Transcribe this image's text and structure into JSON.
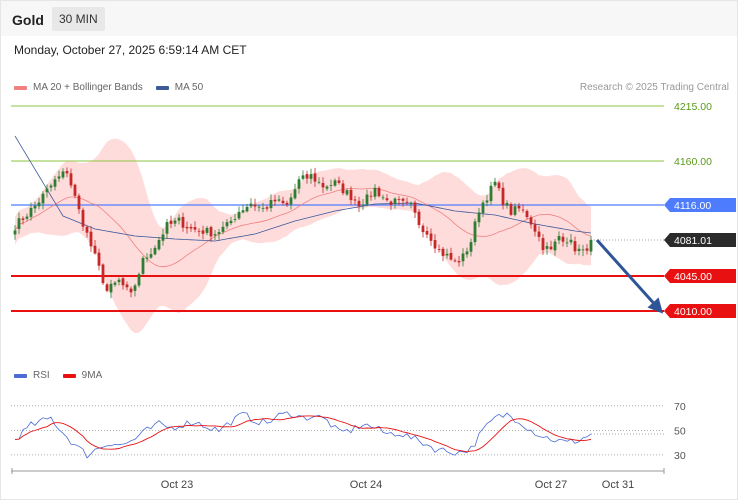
{
  "header": {
    "symbol": "Gold",
    "timeframe": "30 MIN",
    "timestamp": "Monday, October 27, 2025 6:59:14 AM CET",
    "credit": "Research © 2025 Trading Central"
  },
  "legend": {
    "ma20_bb": "MA 20 + Bollinger Bands",
    "ma50": "MA 50",
    "rsi": "RSI",
    "rsi_ma": "9MA"
  },
  "colors": {
    "candle_up": "#2e7d32",
    "candle_down": "#c62828",
    "bollinger_fill": "#ffd6d6",
    "ma20": "#f08080",
    "ma50": "#3d5a99",
    "pivot": "#4d7cff",
    "support": "#e81010",
    "resistance": "#8cc63f",
    "current": "#333333",
    "arrow": "#2f5597",
    "rsi": "#4a6cd4",
    "rsi_ma": "#e81010"
  },
  "chart_data": [
    {
      "type": "candlestick",
      "y_range": [
        3985,
        4225
      ],
      "x_ticks": [
        "Oct 23",
        "Oct 24",
        "Oct 27",
        "Oct 31"
      ],
      "levels": [
        {
          "value": 4215.0,
          "label": "4215.00",
          "kind": "resistance"
        },
        {
          "value": 4160.0,
          "label": "4160.00",
          "kind": "resistance"
        },
        {
          "value": 4116.0,
          "label": "4116.00",
          "kind": "pivot"
        },
        {
          "value": 4081.01,
          "label": "4081.01",
          "kind": "current"
        },
        {
          "value": 4045.0,
          "label": "4045.00",
          "kind": "support"
        },
        {
          "value": 4010.0,
          "label": "4010.00",
          "kind": "support"
        }
      ],
      "forecast_arrow": {
        "from": 4081.01,
        "to": 4010.0
      },
      "close_anchors": [
        [
          0,
          4095
        ],
        [
          5,
          4115
        ],
        [
          10,
          4140
        ],
        [
          13,
          4150
        ],
        [
          16,
          4110
        ],
        [
          19,
          4075
        ],
        [
          23,
          4030
        ],
        [
          26,
          4040
        ],
        [
          29,
          4025
        ],
        [
          32,
          4060
        ],
        [
          35,
          4075
        ],
        [
          38,
          4095
        ],
        [
          41,
          4100
        ],
        [
          44,
          4092
        ],
        [
          47,
          4090
        ],
        [
          50,
          4088
        ],
        [
          53,
          4095
        ],
        [
          56,
          4110
        ],
        [
          59,
          4118
        ],
        [
          62,
          4112
        ],
        [
          65,
          4120
        ],
        [
          68,
          4115
        ],
        [
          71,
          4140
        ],
        [
          74,
          4145
        ],
        [
          77,
          4135
        ],
        [
          80,
          4138
        ],
        [
          83,
          4128
        ],
        [
          86,
          4118
        ],
        [
          88,
          4122
        ],
        [
          90,
          4132
        ],
        [
          93,
          4120
        ],
        [
          96,
          4118
        ],
        [
          99,
          4114
        ],
        [
          101,
          4098
        ],
        [
          104,
          4084
        ],
        [
          106,
          4070
        ],
        [
          108,
          4065
        ],
        [
          110,
          4058
        ],
        [
          112,
          4064
        ],
        [
          114,
          4080
        ],
        [
          116,
          4112
        ],
        [
          118,
          4125
        ],
        [
          120,
          4138
        ],
        [
          122,
          4120
        ],
        [
          124,
          4109
        ],
        [
          126,
          4112
        ],
        [
          128,
          4106
        ],
        [
          130,
          4092
        ],
        [
          132,
          4075
        ],
        [
          134,
          4070
        ],
        [
          136,
          4085
        ],
        [
          138,
          4082
        ],
        [
          140,
          4073
        ],
        [
          142,
          4068
        ],
        [
          144,
          4081
        ]
      ],
      "ma50_anchors": [
        [
          0,
          4185
        ],
        [
          6,
          4145
        ],
        [
          12,
          4105
        ],
        [
          20,
          4092
        ],
        [
          30,
          4085
        ],
        [
          40,
          4082
        ],
        [
          50,
          4080
        ],
        [
          60,
          4087
        ],
        [
          70,
          4100
        ],
        [
          80,
          4110
        ],
        [
          90,
          4117
        ],
        [
          100,
          4118
        ],
        [
          110,
          4110
        ],
        [
          120,
          4106
        ],
        [
          130,
          4097
        ],
        [
          140,
          4090
        ],
        [
          144,
          4088
        ]
      ]
    },
    {
      "type": "line",
      "y_range": [
        25,
        78
      ],
      "y_ticks": [
        70,
        50,
        30
      ],
      "rsi_anchors": [
        [
          0,
          43
        ],
        [
          4,
          54
        ],
        [
          9,
          60
        ],
        [
          12,
          48
        ],
        [
          15,
          38
        ],
        [
          18,
          30
        ],
        [
          21,
          36
        ],
        [
          24,
          40
        ],
        [
          27,
          38
        ],
        [
          30,
          43
        ],
        [
          33,
          50
        ],
        [
          36,
          55
        ],
        [
          39,
          52
        ],
        [
          42,
          55
        ],
        [
          45,
          57
        ],
        [
          48,
          53
        ],
        [
          51,
          50
        ],
        [
          54,
          57
        ],
        [
          57,
          63
        ],
        [
          60,
          58
        ],
        [
          63,
          56
        ],
        [
          66,
          62
        ],
        [
          69,
          64
        ],
        [
          72,
          60
        ],
        [
          75,
          62
        ],
        [
          78,
          58
        ],
        [
          81,
          48
        ],
        [
          84,
          50
        ],
        [
          87,
          55
        ],
        [
          90,
          52
        ],
        [
          93,
          47
        ],
        [
          96,
          48
        ],
        [
          99,
          44
        ],
        [
          102,
          40
        ],
        [
          105,
          35
        ],
        [
          108,
          33
        ],
        [
          111,
          32
        ],
        [
          114,
          35
        ],
        [
          117,
          50
        ],
        [
          120,
          60
        ],
        [
          123,
          63
        ],
        [
          126,
          58
        ],
        [
          129,
          50
        ],
        [
          132,
          45
        ],
        [
          135,
          42
        ],
        [
          138,
          40
        ],
        [
          141,
          42
        ],
        [
          144,
          47
        ]
      ]
    }
  ]
}
